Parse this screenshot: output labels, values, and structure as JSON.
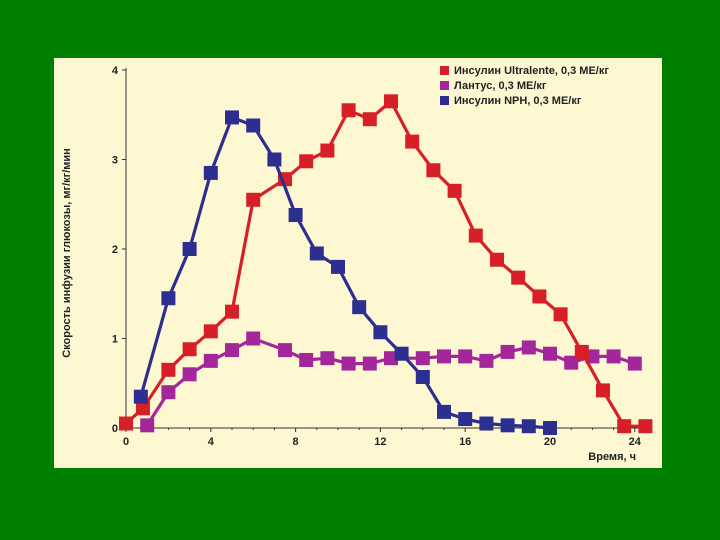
{
  "chart_data": {
    "type": "line",
    "xlabel": "Время, ч",
    "ylabel": "Скорость инфузии глюкозы, мг/кг/мин",
    "xlim": [
      0,
      24
    ],
    "ylim": [
      0,
      4
    ],
    "x_ticks": [
      "0",
      "4",
      "8",
      "12",
      "16",
      "20",
      "24"
    ],
    "y_ticks": [
      "0",
      "1",
      "2",
      "3",
      "4"
    ],
    "grid": false,
    "legend_position": "top-right",
    "series": [
      {
        "name": "Инсулин Ultralente, 0,3 МЕ/кг",
        "color": "#d61f26",
        "points": [
          [
            0,
            0.05
          ],
          [
            0.8,
            0.22
          ],
          [
            2,
            0.65
          ],
          [
            3,
            0.88
          ],
          [
            4,
            1.08
          ],
          [
            5,
            1.3
          ],
          [
            6,
            2.55
          ],
          [
            7.5,
            2.78
          ],
          [
            8.5,
            2.98
          ],
          [
            9.5,
            3.1
          ],
          [
            10.5,
            3.55
          ],
          [
            11.5,
            3.45
          ],
          [
            12.5,
            3.65
          ],
          [
            13.5,
            3.2
          ],
          [
            14.5,
            2.88
          ],
          [
            15.5,
            2.65
          ],
          [
            16.5,
            2.15
          ],
          [
            17.5,
            1.88
          ],
          [
            18.5,
            1.68
          ],
          [
            19.5,
            1.47
          ],
          [
            20.5,
            1.27
          ],
          [
            21.5,
            0.85
          ],
          [
            22.5,
            0.42
          ],
          [
            23.5,
            0.02
          ],
          [
            24.5,
            0.02
          ]
        ]
      },
      {
        "name": "Лантус, 0,3 МЕ/кг",
        "color": "#a3279a",
        "points": [
          [
            1,
            0.03
          ],
          [
            2,
            0.4
          ],
          [
            3,
            0.6
          ],
          [
            4,
            0.75
          ],
          [
            5,
            0.87
          ],
          [
            6,
            1.0
          ],
          [
            7.5,
            0.87
          ],
          [
            8.5,
            0.76
          ],
          [
            9.5,
            0.78
          ],
          [
            10.5,
            0.72
          ],
          [
            11.5,
            0.72
          ],
          [
            12.5,
            0.78
          ],
          [
            14,
            0.78
          ],
          [
            15,
            0.8
          ],
          [
            16,
            0.8
          ],
          [
            17,
            0.75
          ],
          [
            18,
            0.85
          ],
          [
            19,
            0.9
          ],
          [
            20,
            0.83
          ],
          [
            21,
            0.73
          ],
          [
            22,
            0.8
          ],
          [
            23,
            0.8
          ],
          [
            24,
            0.72
          ]
        ]
      },
      {
        "name": "Инсулин NPH, 0,3 МЕ/кг",
        "color": "#2d2f90",
        "points": [
          [
            0.7,
            0.35
          ],
          [
            2,
            1.45
          ],
          [
            3,
            2.0
          ],
          [
            4,
            2.85
          ],
          [
            5,
            3.47
          ],
          [
            6,
            3.38
          ],
          [
            7,
            3.0
          ],
          [
            8,
            2.38
          ],
          [
            9,
            1.95
          ],
          [
            10,
            1.8
          ],
          [
            11,
            1.35
          ],
          [
            12,
            1.07
          ],
          [
            13,
            0.83
          ],
          [
            14,
            0.57
          ],
          [
            15,
            0.18
          ],
          [
            16,
            0.1
          ],
          [
            17,
            0.05
          ],
          [
            18,
            0.03
          ],
          [
            19,
            0.02
          ],
          [
            20,
            0.0
          ]
        ]
      }
    ]
  }
}
